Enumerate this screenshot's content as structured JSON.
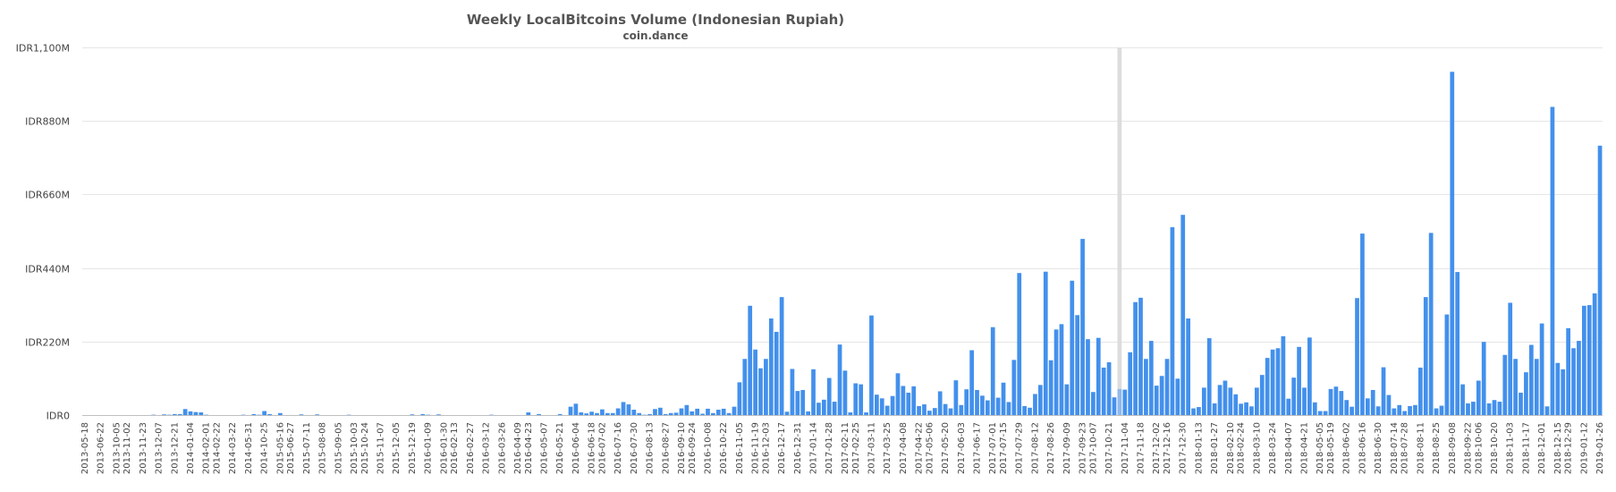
{
  "chart_data": {
    "type": "bar",
    "title": "Weekly LocalBitcoins Volume (Indonesian Rupiah)",
    "subtitle": "coin.dance",
    "xlabel": "",
    "ylabel": "",
    "ylim": [
      0,
      1100000000
    ],
    "y_ticks": [
      {
        "value": 0,
        "label": "IDR0"
      },
      {
        "value": 220000000,
        "label": "IDR220M"
      },
      {
        "value": 440000000,
        "label": "IDR440M"
      },
      {
        "value": 660000000,
        "label": "IDR660M"
      },
      {
        "value": 880000000,
        "label": "IDR880M"
      },
      {
        "value": 1100000000,
        "label": "IDR1,100M"
      }
    ],
    "x_tick_labels": [
      "2013-05-18",
      "2013-06-22",
      "2013-10-05",
      "2013-11-02",
      "2013-11-23",
      "2013-12-07",
      "2013-12-21",
      "2014-01-04",
      "2014-02-01",
      "2014-02-22",
      "2014-03-22",
      "2014-05-31",
      "2014-10-25",
      "2015-05-16",
      "2015-06-27",
      "2015-07-11",
      "2015-08-08",
      "2015-09-05",
      "2015-10-03",
      "2015-10-24",
      "2015-11-07",
      "2015-12-05",
      "2015-12-19",
      "2016-01-09",
      "2016-01-30",
      "2016-02-13",
      "2016-02-27",
      "2016-03-12",
      "2016-03-26",
      "2016-04-09",
      "2016-04-23",
      "2016-05-07",
      "2016-05-21",
      "2016-06-04",
      "2016-06-18",
      "2016-07-02",
      "2016-07-16",
      "2016-07-30",
      "2016-08-13",
      "2016-08-27",
      "2016-09-10",
      "2016-09-24",
      "2016-10-08",
      "2016-10-22",
      "2016-11-05",
      "2016-11-19",
      "2016-12-03",
      "2016-12-17",
      "2016-12-31",
      "2017-01-14",
      "2017-01-28",
      "2017-02-11",
      "2017-02-25",
      "2017-03-11",
      "2017-03-25",
      "2017-04-08",
      "2017-04-22",
      "2017-05-06",
      "2017-05-20",
      "2017-06-03",
      "2017-06-17",
      "2017-07-01",
      "2017-07-15",
      "2017-07-29",
      "2017-08-12",
      "2017-08-26",
      "2017-09-09",
      "2017-09-23",
      "2017-10-07",
      "2017-10-21",
      "2017-11-04",
      "2017-11-18",
      "2017-12-02",
      "2017-12-16",
      "2017-12-30",
      "2018-01-13",
      "2018-01-27",
      "2018-02-10",
      "2018-02-24",
      "2018-03-10",
      "2018-03-24",
      "2018-04-07",
      "2018-04-21",
      "2018-05-05",
      "2018-05-19",
      "2018-06-02",
      "2018-06-16",
      "2018-06-30",
      "2018-07-14",
      "2018-07-28",
      "2018-08-11",
      "2018-08-25",
      "2018-09-08",
      "2018-09-22",
      "2018-10-06",
      "2018-10-20",
      "2018-11-03",
      "2018-11-17",
      "2018-12-01",
      "2018-12-15",
      "2018-12-29",
      "2019-01-12",
      "2019-01-26"
    ],
    "highlighted_index": 196,
    "colors": {
      "bar": "#4390ec",
      "bar_highlight": "#8fb8ee",
      "hover_band": "#dcdcdc",
      "grid": "#e6e6e6",
      "text": "#555555"
    },
    "values": [
      0,
      0,
      0,
      0,
      0,
      0,
      0,
      0,
      0,
      0,
      0,
      0,
      0,
      1000000,
      0,
      2000000,
      1000000,
      3000000,
      3000000,
      18000000,
      11000000,
      9000000,
      8000000,
      1000000,
      0,
      0,
      0,
      0,
      0,
      0,
      1000000,
      0,
      3000000,
      1000000,
      12000000,
      3000000,
      0,
      6000000,
      0,
      0,
      0,
      2000000,
      0,
      0,
      2000000,
      0,
      0,
      0,
      0,
      0,
      1000000,
      0,
      0,
      0,
      0,
      0,
      0,
      0,
      0,
      0,
      0,
      0,
      2000000,
      0,
      3000000,
      1000000,
      0,
      2000000,
      0,
      0,
      0,
      0,
      0,
      0,
      0,
      0,
      0,
      1000000,
      0,
      0,
      0,
      0,
      0,
      0,
      8000000,
      0,
      3000000,
      0,
      0,
      0,
      3000000,
      0,
      25000000,
      34000000,
      8000000,
      5000000,
      10000000,
      6000000,
      17000000,
      6000000,
      6000000,
      20000000,
      39000000,
      32000000,
      16000000,
      6000000,
      1000000,
      3000000,
      18000000,
      22000000,
      3000000,
      6000000,
      7000000,
      20000000,
      30000000,
      11000000,
      19000000,
      4000000,
      19000000,
      6000000,
      16000000,
      19000000,
      6000000,
      25000000,
      98000000,
      168000000,
      327000000,
      196000000,
      140000000,
      168000000,
      289000000,
      249000000,
      353000000,
      10000000,
      138000000,
      72000000,
      75000000,
      11000000,
      137000000,
      37000000,
      46000000,
      111000000,
      40000000,
      211000000,
      133000000,
      8000000,
      95000000,
      92000000,
      8000000,
      298000000,
      61000000,
      50000000,
      28000000,
      57000000,
      125000000,
      87000000,
      67000000,
      86000000,
      27000000,
      32000000,
      13000000,
      21000000,
      71000000,
      33000000,
      20000000,
      104000000,
      30000000,
      77000000,
      194000000,
      75000000,
      58000000,
      44000000,
      263000000,
      52000000,
      97000000,
      39000000,
      165000000,
      425000000,
      27000000,
      22000000,
      63000000,
      90000000,
      429000000,
      164000000,
      256000000,
      272000000,
      92000000,
      402000000,
      299000000,
      527000000,
      227000000,
      69000000,
      231000000,
      142000000,
      158000000,
      53000000,
      78000000,
      76000000,
      188000000,
      338000000,
      351000000,
      168000000,
      222000000,
      88000000,
      117000000,
      168000000,
      562000000,
      109000000,
      599000000,
      289000000,
      20000000,
      24000000,
      82000000,
      230000000,
      35000000,
      90000000,
      103000000,
      82000000,
      62000000,
      34000000,
      38000000,
      26000000,
      82000000,
      120000000,
      171000000,
      196000000,
      200000000,
      236000000,
      49000000,
      112000000,
      204000000,
      82000000,
      232000000,
      38000000,
      12000000,
      12000000,
      78000000,
      85000000,
      72000000,
      45000000,
      25000000,
      350000000,
      543000000,
      50000000,
      75000000,
      26000000,
      143000000,
      60000000,
      20000000,
      30000000,
      12000000,
      27000000,
      30000000,
      142000000,
      353000000,
      545000000,
      20000000,
      28000000,
      301000000,
      1027000000,
      428000000,
      92000000,
      35000000,
      40000000,
      103000000,
      219000000,
      35000000,
      45000000,
      40000000,
      180000000,
      336000000,
      168000000,
      67000000,
      128000000,
      210000000,
      168000000,
      274000000,
      26000000,
      922000000,
      156000000,
      137000000,
      260000000,
      200000000,
      222000000,
      327000000,
      329000000,
      364000000,
      806000000
    ]
  }
}
